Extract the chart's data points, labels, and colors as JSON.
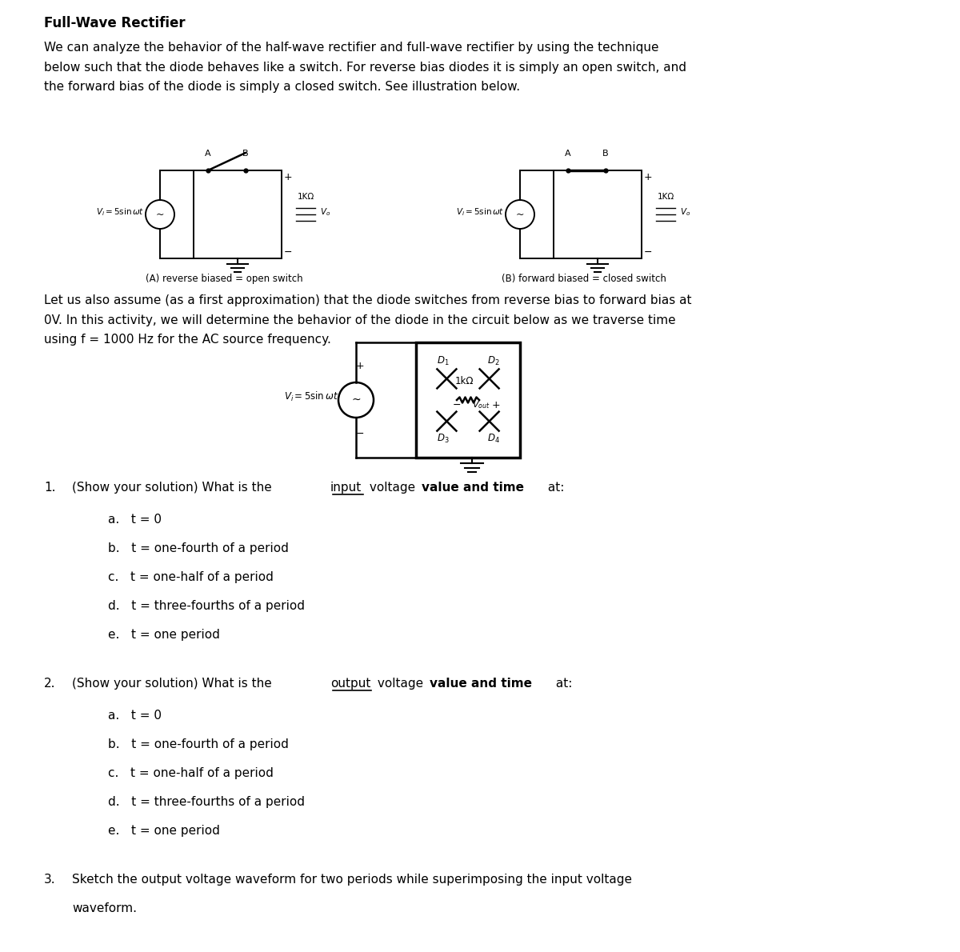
{
  "title": "Full-Wave Rectifier",
  "bg_color": "#ffffff",
  "text_color": "#000000",
  "para1": "We can analyze the behavior of the half-wave rectifier and full-wave rectifier by using the technique\nbelow such that the diode behaves like a switch. For reverse bias diodes it is simply an open switch, and\nthe forward bias of the diode is simply a closed switch. See illustration below.",
  "caption_A": "(A) reverse biased = open switch",
  "caption_B": "(B) forward biased = closed switch",
  "para2": "Let us also assume (as a first approximation) that the diode switches from reverse bias to forward bias at\n0V. In this activity, we will determine the behavior of the diode in the circuit below as we traverse time\nusing f = 1000 Hz for the AC source frequency.",
  "q1_header": "1. (Show your solution) What is the input voltage value and time at:",
  "q1_items": [
    "a.  t = 0",
    "b.  t = one-fourth of a period",
    "c.   t = one-half of a period",
    "d.  t = three-fourths of a period",
    "e.   t = one period"
  ],
  "q2_header": "2. (Show your solution) What is the output voltage value and time at:",
  "q2_items": [
    "a.  t = 0",
    "b.  t = one-fourth of a period",
    "c.   t = one-half of a period",
    "d.  t = three-fourths of a period",
    "e.   t = one period"
  ],
  "q3_header": "3.  Sketch the output voltage waveform for two periods while superimposing the input voltage\n    waveform."
}
